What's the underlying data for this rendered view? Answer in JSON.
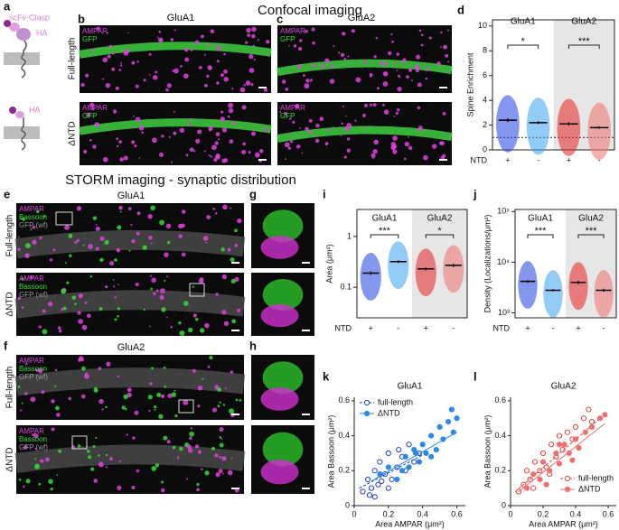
{
  "headings": {
    "confocal": "Confocal imaging",
    "storm": "STORM imaging - synaptic distribution"
  },
  "panel_letters": [
    "a",
    "b",
    "c",
    "d",
    "e",
    "f",
    "g",
    "h",
    "i",
    "j",
    "k",
    "l"
  ],
  "panel_a": {
    "construct": "scFv-Clasp",
    "tag_top": "HA",
    "tag_bottom": "HA"
  },
  "confocal": {
    "groups": [
      "GluA1",
      "GluA2"
    ],
    "rows": [
      "Full-length",
      "ΔNTD"
    ],
    "channels": [
      "AMPAR",
      "GFP"
    ]
  },
  "storm": {
    "groups": [
      "GluA1",
      "GluA2"
    ],
    "rows": [
      "Full-length",
      "ΔNTD"
    ],
    "channels": [
      "AMPAR",
      "Bassoon",
      "GFP (wf)"
    ]
  },
  "chart_data": [
    {
      "type": "dot",
      "ylabel": "Spine Enrichment",
      "xlabel": "NTD",
      "groups": [
        "GluA1",
        "GluA2"
      ],
      "categories": [
        "+",
        "-",
        "+",
        "-"
      ],
      "colors": [
        "#1f3fe0",
        "#3aa0f0",
        "#e82020",
        "#f07070"
      ],
      "means": [
        2.4,
        2.2,
        2.1,
        1.8
      ],
      "sem": [
        0.15,
        0.12,
        0.14,
        0.1
      ],
      "significance": [
        "*",
        "***"
      ],
      "reference": 1,
      "ylim": [
        0,
        10.5
      ],
      "yticks": [
        0,
        2,
        4,
        6,
        8,
        10
      ],
      "log": false
    },
    {
      "type": "dot",
      "ylabel": "Area (μm²)",
      "xlabel": "NTD",
      "groups": [
        "GluA1",
        "GluA2"
      ],
      "categories": [
        "+",
        "-",
        "+",
        "-"
      ],
      "colors": [
        "#1f3fe0",
        "#3aa0f0",
        "#e82020",
        "#f07070"
      ],
      "means": [
        0.19,
        0.32,
        0.23,
        0.27
      ],
      "sem": [
        0.015,
        0.02,
        0.015,
        0.02
      ],
      "significance": [
        "***",
        "*"
      ],
      "ylim": [
        0.025,
        3.4
      ],
      "yticks": [
        0.1,
        1
      ],
      "log": true
    },
    {
      "type": "dot",
      "ylabel": "Density (Localizations/μm²)",
      "xlabel": "NTD",
      "groups": [
        "GluA1",
        "GluA2"
      ],
      "categories": [
        "+",
        "-",
        "+",
        "-"
      ],
      "colors": [
        "#1f3fe0",
        "#3aa0f0",
        "#e82020",
        "#f07070"
      ],
      "means": [
        4200,
        2800,
        4000,
        2800
      ],
      "sem": [
        250,
        150,
        300,
        200
      ],
      "significance": [
        "***",
        "***"
      ],
      "ylim": [
        800,
        110000
      ],
      "yticks": [
        {
          "value": 1000,
          "label": "10³"
        },
        {
          "value": 10000,
          "label": "10⁴"
        },
        {
          "value": 100000,
          "label": "10⁵"
        }
      ],
      "log": true
    },
    {
      "type": "scatter",
      "title": "GluA1",
      "xlabel": "Area AMPAR (μm²)",
      "ylabel": "Area Bassoon (μm²)",
      "xlim": [
        0,
        0.65
      ],
      "xticks": [
        0,
        0.2,
        0.4,
        0.6
      ],
      "ylim": [
        0,
        0.62
      ],
      "yticks": [
        0,
        0.2,
        0.4,
        0.6
      ],
      "legend": "top-left",
      "series": [
        {
          "name": "full-length",
          "color": "#1f3fe0",
          "filled": false,
          "x": [
            0.05,
            0.08,
            0.1,
            0.12,
            0.14,
            0.15,
            0.18,
            0.2,
            0.22,
            0.25,
            0.28,
            0.3,
            0.32,
            0.35,
            0.38,
            0.12,
            0.2,
            0.26,
            0.16,
            0.09
          ],
          "y": [
            0.08,
            0.15,
            0.1,
            0.2,
            0.12,
            0.25,
            0.18,
            0.3,
            0.15,
            0.22,
            0.28,
            0.2,
            0.35,
            0.25,
            0.3,
            0.05,
            0.1,
            0.32,
            0.14,
            0.06
          ],
          "fit": {
            "x": [
              0.03,
              0.4
            ],
            "y": [
              0.1,
              0.29
            ]
          }
        },
        {
          "name": "ΔNTD",
          "color": "#2a8ae8",
          "filled": true,
          "x": [
            0.15,
            0.2,
            0.25,
            0.3,
            0.32,
            0.35,
            0.38,
            0.4,
            0.42,
            0.45,
            0.48,
            0.5,
            0.52,
            0.55,
            0.58,
            0.6,
            0.57,
            0.45,
            0.28,
            0.36
          ],
          "y": [
            0.18,
            0.22,
            0.15,
            0.28,
            0.22,
            0.32,
            0.25,
            0.35,
            0.3,
            0.4,
            0.32,
            0.45,
            0.38,
            0.48,
            0.42,
            0.5,
            0.55,
            0.28,
            0.2,
            0.3
          ],
          "fit": {
            "x": [
              0.1,
              0.6
            ],
            "y": [
              0.14,
              0.42
            ]
          }
        }
      ]
    },
    {
      "type": "scatter",
      "title": "GluA2",
      "xlabel": "Area AMPAR (μm²)",
      "ylabel": "Area Bassoon (μm²)",
      "xlim": [
        0,
        0.65
      ],
      "xticks": [
        0,
        0.2,
        0.4,
        0.6
      ],
      "ylim": [
        0,
        0.62
      ],
      "yticks": [
        0,
        0.2,
        0.4,
        0.6
      ],
      "legend": "bottom-right",
      "series": [
        {
          "name": "full-length",
          "color": "#e84040",
          "filled": false,
          "x": [
            0.05,
            0.08,
            0.1,
            0.12,
            0.15,
            0.18,
            0.2,
            0.22,
            0.25,
            0.28,
            0.3,
            0.32,
            0.35,
            0.38,
            0.4,
            0.45,
            0.48,
            0.5,
            0.14,
            0.24
          ],
          "y": [
            0.08,
            0.12,
            0.2,
            0.15,
            0.25,
            0.2,
            0.3,
            0.22,
            0.35,
            0.28,
            0.4,
            0.32,
            0.42,
            0.38,
            0.45,
            0.5,
            0.55,
            0.48,
            0.1,
            0.18
          ],
          "fit": {
            "x": [
              0.03,
              0.55
            ],
            "y": [
              0.08,
              0.5
            ]
          }
        },
        {
          "name": "ΔNTD",
          "color": "#f07070",
          "filled": true,
          "x": [
            0.1,
            0.14,
            0.18,
            0.2,
            0.24,
            0.28,
            0.3,
            0.33,
            0.36,
            0.4,
            0.42,
            0.46,
            0.5,
            0.55,
            0.58,
            0.22,
            0.3,
            0.38
          ],
          "y": [
            0.1,
            0.18,
            0.15,
            0.25,
            0.2,
            0.3,
            0.24,
            0.35,
            0.3,
            0.38,
            0.33,
            0.42,
            0.45,
            0.5,
            0.52,
            0.12,
            0.35,
            0.26
          ],
          "fit": {
            "x": [
              0.05,
              0.58
            ],
            "y": [
              0.08,
              0.47
            ]
          }
        }
      ]
    }
  ]
}
